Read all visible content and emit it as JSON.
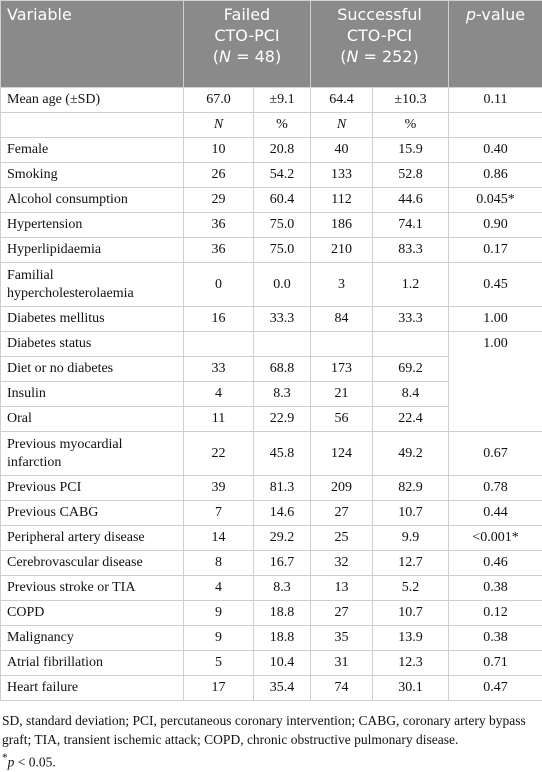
{
  "table": {
    "header": {
      "variable": "Variable",
      "failed": {
        "lines": [
          "Failed",
          "CTO-PCI"
        ],
        "n": [
          "(",
          "N",
          " = 48)"
        ]
      },
      "successful": {
        "lines": [
          "Successful",
          "CTO-PCI"
        ],
        "n": [
          "(",
          "N",
          " = 252)"
        ]
      },
      "p_value": [
        "p",
        "-value"
      ]
    },
    "rows": [
      [
        "Mean age (±SD)",
        "67.0",
        "±9.1",
        "64.4",
        "±10.3",
        "0.11"
      ],
      [
        null,
        "N",
        "%",
        "N",
        "%",
        null
      ],
      [
        "Female",
        "10",
        "20.8",
        "40",
        "15.9",
        "0.40"
      ],
      [
        "Smoking",
        "26",
        "54.2",
        "133",
        "52.8",
        "0.86"
      ],
      [
        "Alcohol consumption",
        "29",
        "60.4",
        "112",
        "44.6",
        "0.045*"
      ],
      [
        "Hypertension",
        "36",
        "75.0",
        "186",
        "74.1",
        "0.90"
      ],
      [
        "Hyperlipidaemia",
        "36",
        "75.0",
        "210",
        "83.3",
        "0.17"
      ],
      [
        "Familial hypercholesterolaemia",
        "0",
        "0.0",
        "3",
        "1.2",
        "0.45"
      ],
      [
        "Diabetes mellitus",
        "16",
        "33.3",
        "84",
        "33.3",
        "1.00"
      ],
      [
        "Diabetes status",
        null,
        null,
        null,
        null,
        "1.00"
      ],
      [
        "Diet or no diabetes",
        "33",
        "68.8",
        "173",
        "69.2",
        null
      ],
      [
        "Insulin",
        "4",
        "8.3",
        "21",
        "8.4",
        null
      ],
      [
        "Oral",
        "11",
        "22.9",
        "56",
        "22.4",
        null
      ],
      [
        "Previous myocardial infarction",
        "22",
        "45.8",
        "124",
        "49.2",
        "0.67"
      ],
      [
        "Previous PCI",
        "39",
        "81.3",
        "209",
        "82.9",
        "0.78"
      ],
      [
        "Previous CABG",
        "7",
        "14.6",
        "27",
        "10.7",
        "0.44"
      ],
      [
        "Peripheral artery disease",
        "14",
        "29.2",
        "25",
        "9.9",
        "<0.001*"
      ],
      [
        "Cerebrovascular disease",
        "8",
        "16.7",
        "32",
        "12.7",
        "0.46"
      ],
      [
        "Previous stroke or TIA",
        "4",
        "8.3",
        "13",
        "5.2",
        "0.38"
      ],
      [
        "COPD",
        "9",
        "18.8",
        "27",
        "10.7",
        "0.12"
      ],
      [
        "Malignancy",
        "9",
        "18.8",
        "35",
        "13.9",
        "0.38"
      ],
      [
        "Atrial fibrillation",
        "5",
        "10.4",
        "31",
        "12.3",
        "0.71"
      ],
      [
        "Heart failure",
        "17",
        "35.4",
        "74",
        "30.1",
        "0.47"
      ]
    ]
  },
  "footnote": {
    "abbreviations": "SD, standard deviation; PCI, percutaneous coronary intervention; CABG, coronary artery bypass graft; TIA, transient ischemic attack; COPD, chronic obstructive pulmonary disease.",
    "significance": [
      "*",
      "p",
      " < 0.05."
    ]
  }
}
